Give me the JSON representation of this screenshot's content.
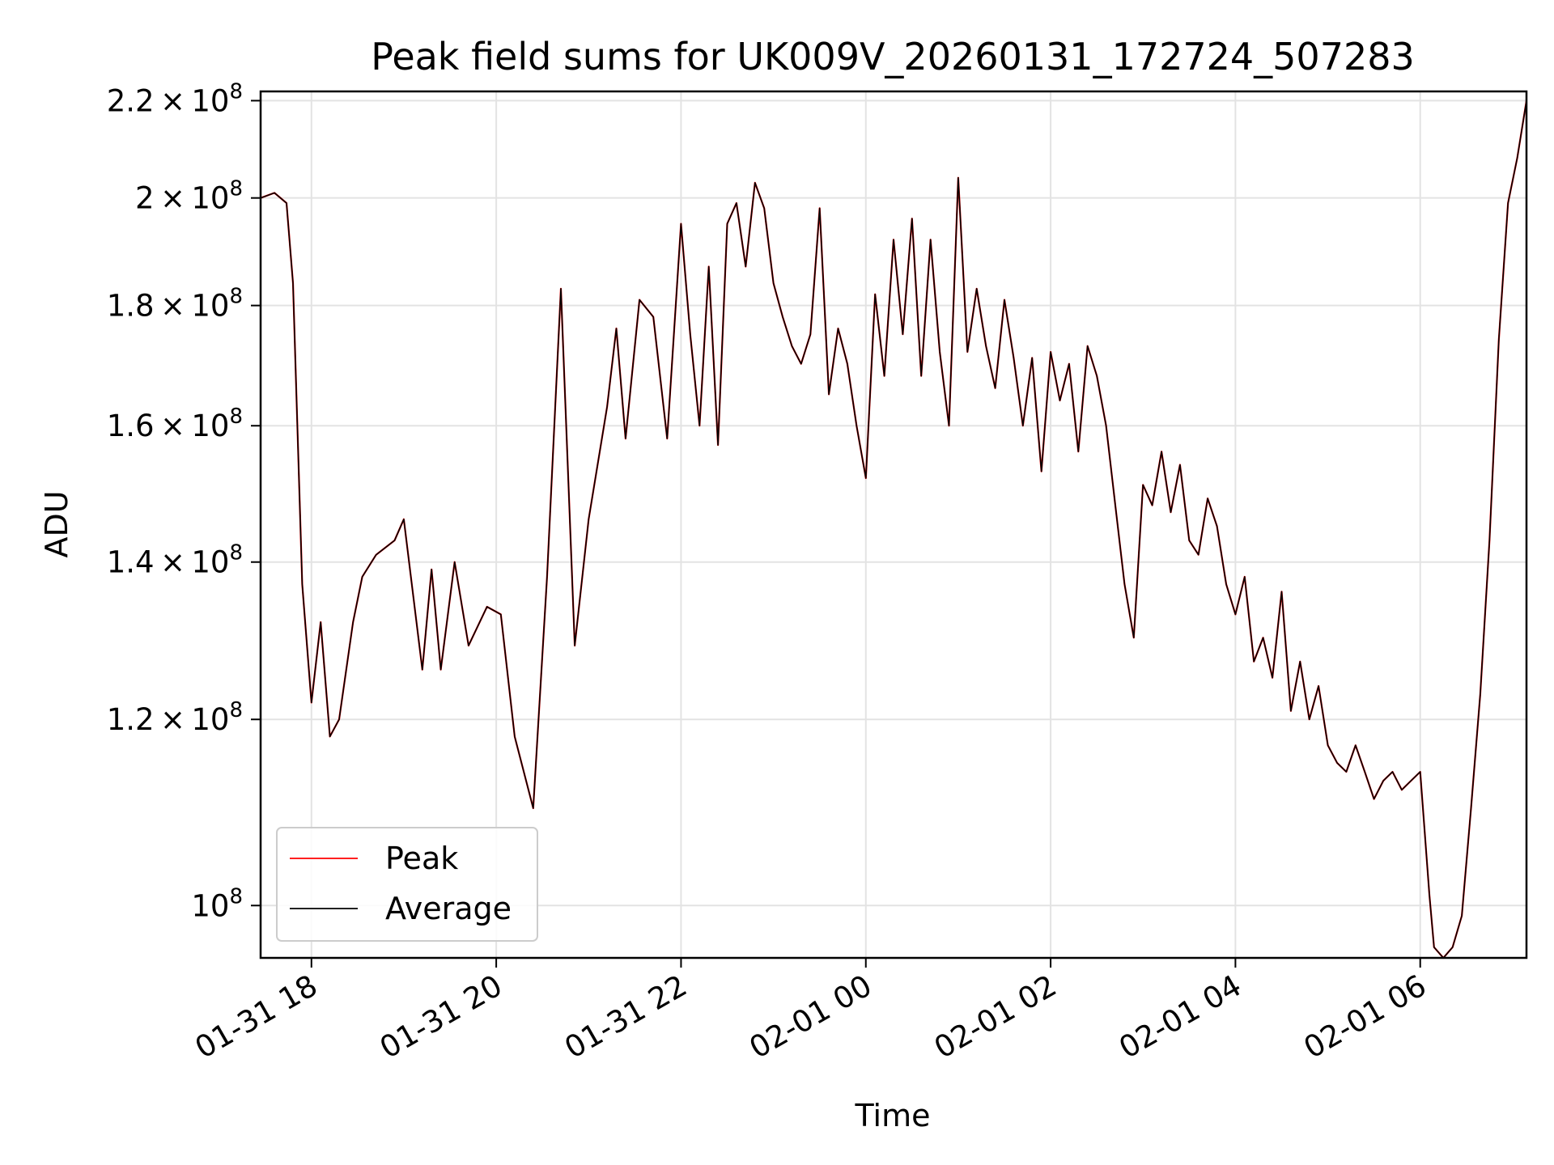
{
  "chart_data": {
    "type": "line",
    "title": "Peak field sums for UK009V_20260131_172724_507283",
    "xlabel": "Time",
    "ylabel": "ADU",
    "yscale": "log",
    "ylim": [
      95000000,
      222000000
    ],
    "xlim_hours": [
      -6.55,
      7.15
    ],
    "grid": true,
    "legend_position": "lower-left",
    "x_ticks": [
      {
        "hours": -6,
        "label": "01-31 18"
      },
      {
        "hours": -4,
        "label": "01-31 20"
      },
      {
        "hours": -2,
        "label": "01-31 22"
      },
      {
        "hours": 0,
        "label": "02-01 00"
      },
      {
        "hours": 2,
        "label": "02-01 02"
      },
      {
        "hours": 4,
        "label": "02-01 04"
      },
      {
        "hours": 6,
        "label": "02-01 06"
      }
    ],
    "y_ticks": [
      {
        "value": 100000000,
        "mant": "",
        "exp": "10",
        "sup": "8"
      },
      {
        "value": 120000000,
        "mant": "1.2",
        "exp": "10",
        "sup": "8"
      },
      {
        "value": 140000000,
        "mant": "1.4",
        "exp": "10",
        "sup": "8"
      },
      {
        "value": 160000000,
        "mant": "1.6",
        "exp": "10",
        "sup": "8"
      },
      {
        "value": 180000000,
        "mant": "1.8",
        "exp": "10",
        "sup": "8"
      },
      {
        "value": 200000000,
        "mant": "2",
        "exp": "10",
        "sup": "8"
      },
      {
        "value": 220000000,
        "mant": "2.2",
        "exp": "10",
        "sup": "8"
      }
    ],
    "x_hours": [
      -6.55,
      -6.4,
      -6.27,
      -6.2,
      -6.1,
      -6.0,
      -5.9,
      -5.8,
      -5.7,
      -5.55,
      -5.45,
      -5.3,
      -5.1,
      -5.0,
      -4.8,
      -4.7,
      -4.6,
      -4.45,
      -4.3,
      -4.1,
      -3.95,
      -3.8,
      -3.6,
      -3.45,
      -3.3,
      -3.15,
      -3.0,
      -2.8,
      -2.7,
      -2.6,
      -2.45,
      -2.3,
      -2.15,
      -2.0,
      -1.9,
      -1.8,
      -1.7,
      -1.6,
      -1.5,
      -1.4,
      -1.3,
      -1.2,
      -1.1,
      -1.0,
      -0.9,
      -0.8,
      -0.7,
      -0.6,
      -0.5,
      -0.4,
      -0.3,
      -0.2,
      -0.1,
      0.0,
      0.1,
      0.2,
      0.3,
      0.4,
      0.5,
      0.6,
      0.7,
      0.8,
      0.9,
      1.0,
      1.1,
      1.2,
      1.3,
      1.4,
      1.5,
      1.6,
      1.7,
      1.8,
      1.9,
      2.0,
      2.1,
      2.2,
      2.3,
      2.4,
      2.5,
      2.6,
      2.7,
      2.8,
      2.9,
      3.0,
      3.1,
      3.2,
      3.3,
      3.4,
      3.5,
      3.6,
      3.7,
      3.8,
      3.9,
      4.0,
      4.1,
      4.2,
      4.3,
      4.4,
      4.5,
      4.6,
      4.7,
      4.8,
      4.9,
      5.0,
      5.1,
      5.2,
      5.3,
      5.4,
      5.5,
      5.6,
      5.7,
      5.8,
      5.9,
      6.0,
      6.1,
      6.15,
      6.25,
      6.35,
      6.45,
      6.55,
      6.65,
      6.75,
      6.85,
      6.95,
      7.05,
      7.15
    ],
    "series": [
      {
        "name": "Peak",
        "color": "#ff0000",
        "values": [
          200000000,
          201000000,
          199000000,
          184000000,
          137000000,
          122000000,
          132000000,
          118000000,
          120000000,
          132000000,
          138000000,
          141000000,
          143000000,
          146000000,
          126000000,
          139000000,
          126000000,
          140000000,
          129000000,
          134000000,
          133000000,
          118000000,
          110000000,
          138000000,
          183000000,
          129000000,
          146000000,
          163000000,
          176000000,
          158000000,
          181000000,
          178000000,
          158000000,
          195000000,
          175000000,
          160000000,
          187000000,
          157000000,
          195000000,
          199000000,
          187000000,
          203000000,
          198000000,
          184000000,
          178000000,
          173000000,
          170000000,
          175000000,
          198000000,
          165000000,
          176000000,
          170000000,
          160000000,
          152000000,
          182000000,
          168000000,
          192000000,
          175000000,
          196000000,
          168000000,
          192000000,
          172000000,
          160000000,
          204000000,
          172000000,
          183000000,
          173000000,
          166000000,
          181000000,
          171000000,
          160000000,
          171000000,
          153000000,
          172000000,
          164000000,
          170000000,
          156000000,
          173000000,
          168000000,
          160000000,
          148000000,
          137000000,
          130000000,
          151000000,
          148000000,
          156000000,
          147000000,
          154000000,
          143000000,
          141000000,
          149000000,
          145000000,
          137000000,
          133000000,
          138000000,
          127000000,
          130000000,
          125000000,
          136000000,
          121000000,
          127000000,
          120000000,
          124000000,
          117000000,
          115000000,
          114000000,
          117000000,
          114000000,
          111000000,
          113000000,
          114000000,
          112000000,
          113000000,
          114000000,
          101000000,
          96000000,
          95000000,
          96000000,
          99000000,
          110000000,
          123000000,
          143000000,
          174000000,
          199000000,
          208000000,
          220000000
        ]
      },
      {
        "name": "Average",
        "color": "#000000",
        "values": [
          200000000,
          201000000,
          199000000,
          184000000,
          137000000,
          122000000,
          132000000,
          118000000,
          120000000,
          132000000,
          138000000,
          141000000,
          143000000,
          146000000,
          126000000,
          139000000,
          126000000,
          140000000,
          129000000,
          134000000,
          133000000,
          118000000,
          110000000,
          138000000,
          183000000,
          129000000,
          146000000,
          163000000,
          176000000,
          158000000,
          181000000,
          178000000,
          158000000,
          195000000,
          175000000,
          160000000,
          187000000,
          157000000,
          195000000,
          199000000,
          187000000,
          203000000,
          198000000,
          184000000,
          178000000,
          173000000,
          170000000,
          175000000,
          198000000,
          165000000,
          176000000,
          170000000,
          160000000,
          152000000,
          182000000,
          168000000,
          192000000,
          175000000,
          196000000,
          168000000,
          192000000,
          172000000,
          160000000,
          204000000,
          172000000,
          183000000,
          173000000,
          166000000,
          181000000,
          171000000,
          160000000,
          171000000,
          153000000,
          172000000,
          164000000,
          170000000,
          156000000,
          173000000,
          168000000,
          160000000,
          148000000,
          137000000,
          130000000,
          151000000,
          148000000,
          156000000,
          147000000,
          154000000,
          143000000,
          141000000,
          149000000,
          145000000,
          137000000,
          133000000,
          138000000,
          127000000,
          130000000,
          125000000,
          136000000,
          121000000,
          127000000,
          120000000,
          124000000,
          117000000,
          115000000,
          114000000,
          117000000,
          114000000,
          111000000,
          113000000,
          114000000,
          112000000,
          113000000,
          114000000,
          101000000,
          96000000,
          95000000,
          96000000,
          99000000,
          110000000,
          123000000,
          143000000,
          174000000,
          199000000,
          208000000,
          220000000
        ]
      }
    ]
  }
}
